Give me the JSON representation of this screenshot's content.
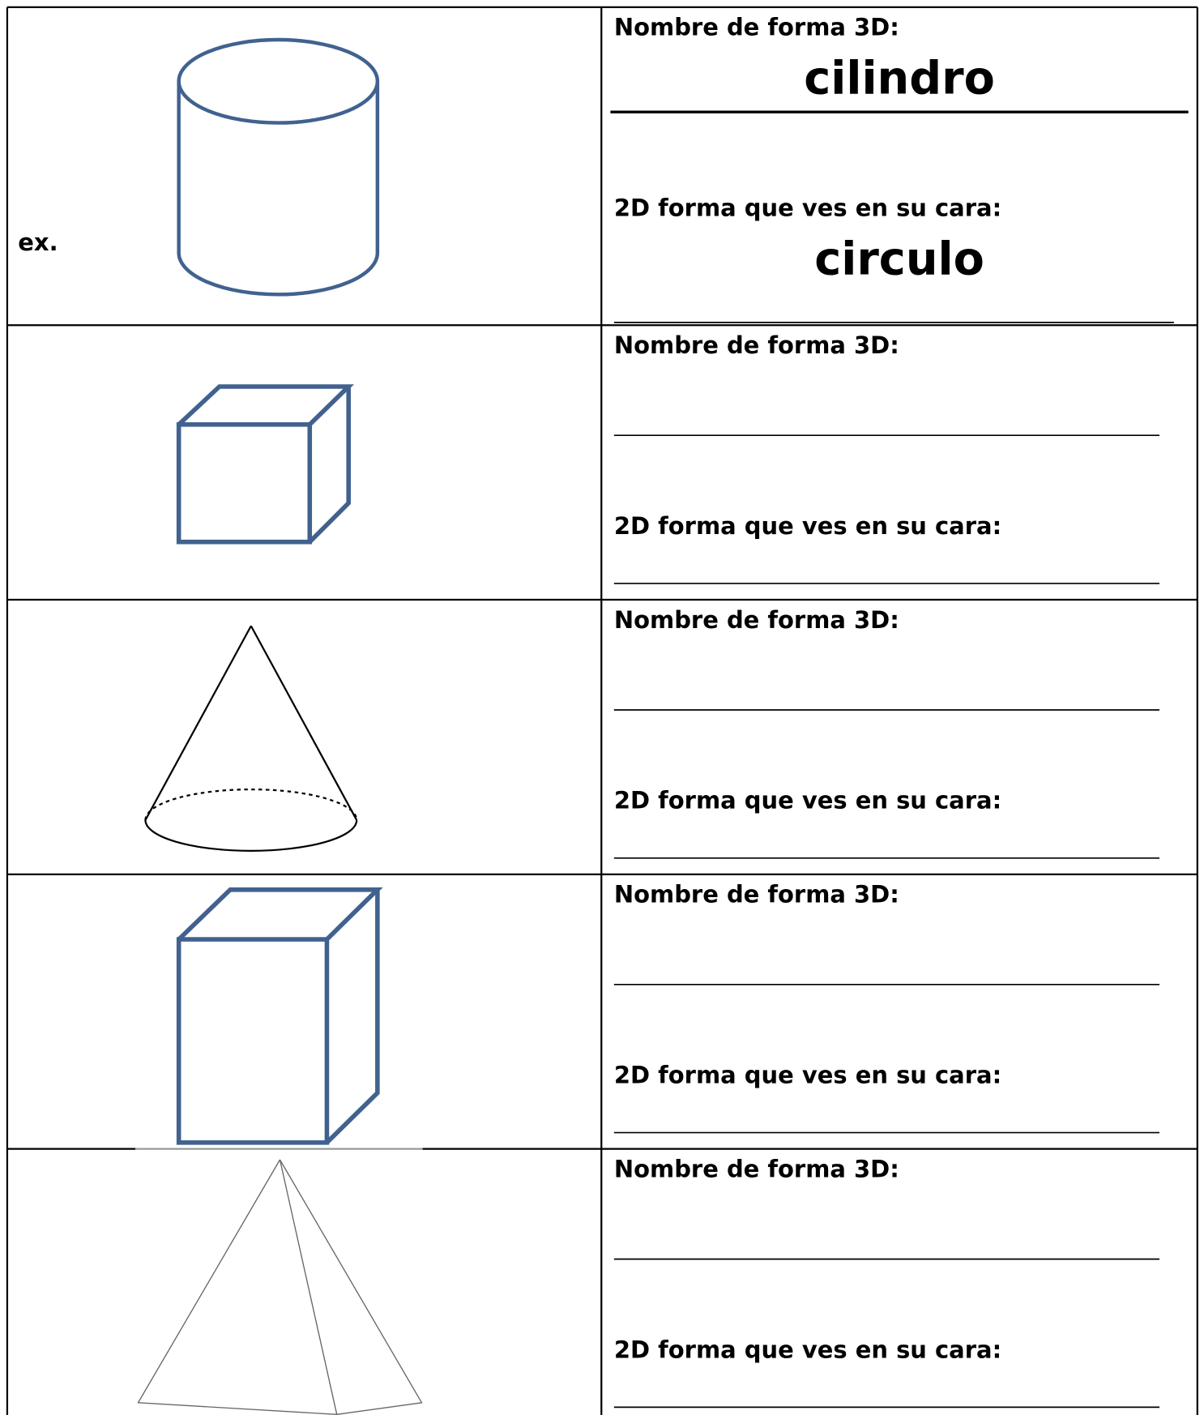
{
  "rows": [
    {
      "marker": "ex.",
      "name_label": "Nombre de forma 3D:",
      "name_answer": "cilindro",
      "face_label": "2D forma que ves en su cara:",
      "face_answer": "circulo"
    },
    {
      "name_label": "Nombre de forma 3D:",
      "face_label": "2D forma que ves en su cara:"
    },
    {
      "name_label": "Nombre de forma 3D:",
      "face_label": "2D forma que ves en su cara:"
    },
    {
      "name_label": "Nombre de forma 3D:",
      "face_label": "2D forma que ves en su cara:"
    },
    {
      "name_label": "Nombre de forma 3D:",
      "face_label": "2D forma que ves en su cara:"
    }
  ]
}
